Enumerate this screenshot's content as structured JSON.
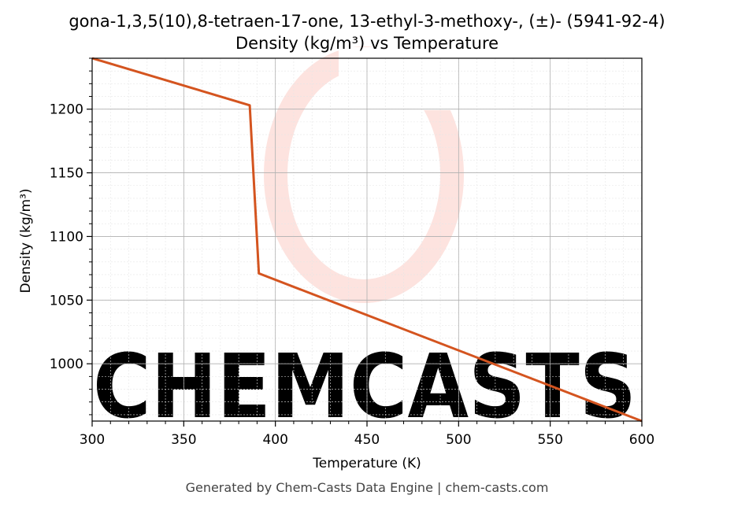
{
  "chart_data": {
    "type": "line",
    "title_line1": "gona-1,3,5(10),8-tetraen-17-one, 13-ethyl-3-methoxy-, (±)- (5941-92-4)",
    "title_line2": "Density (kg/m³) vs Temperature",
    "xlabel": "Temperature (K)",
    "ylabel": "Density (kg/m³)",
    "xlim": [
      300,
      600
    ],
    "ylim": [
      955,
      1240
    ],
    "x_ticks": [
      300,
      350,
      400,
      450,
      500,
      550,
      600
    ],
    "y_ticks": [
      1000,
      1050,
      1100,
      1150,
      1200
    ],
    "grid": true,
    "series": [
      {
        "color": "#d4541f",
        "x": [
          300,
          386,
          391,
          600
        ],
        "y": [
          1240,
          1203,
          1071,
          955
        ]
      }
    ],
    "watermark": "CHEMCASTS",
    "footer": "Generated by Chem-Casts Data Engine | chem-casts.com"
  }
}
